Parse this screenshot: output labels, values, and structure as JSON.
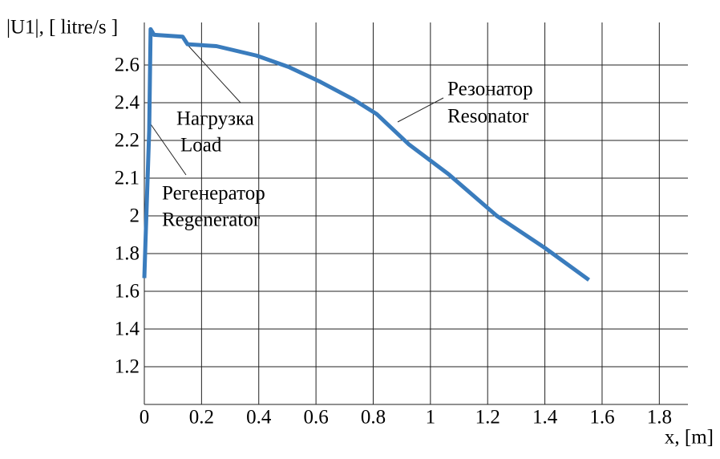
{
  "chart_data": {
    "type": "line",
    "y_label": "|U1|, [ litre/s ]",
    "x_label": "x, [m]",
    "x": [
      0,
      0.004,
      0.017,
      0.022,
      0.034,
      0.134,
      0.151,
      0.252,
      0.392,
      0.504,
      0.616,
      0.728,
      0.812,
      0.924,
      1.064,
      1.232,
      1.4,
      1.554
    ],
    "series": [
      {
        "color": "#3a7cbd",
        "values": [
          1.67,
          1.86,
          2.25,
          2.79,
          2.76,
          2.75,
          2.71,
          2.7,
          2.65,
          2.59,
          2.51,
          2.42,
          2.34,
          2.19,
          2.11,
          2.0,
          1.83,
          1.66
        ]
      }
    ],
    "xlim": [
      0,
      1.9
    ],
    "xticks": [
      0,
      0.2,
      0.4,
      0.6,
      0.8,
      1,
      1.2,
      1.4,
      1.6,
      1.8
    ],
    "ylim": [
      1.0,
      2.8
    ],
    "yticks": [
      2.6,
      2.4,
      2.2,
      2.1,
      2,
      1.8,
      1.6,
      1.4,
      1.2
    ],
    "grid": true,
    "annotations": {
      "load_ru": "Нагрузка",
      "load_en": "Load",
      "regenerator_ru": "Регенератор",
      "regenerator_en": "Regenerator",
      "resonator_ru": "Резонатор",
      "resonator_en": "Resonator"
    }
  }
}
